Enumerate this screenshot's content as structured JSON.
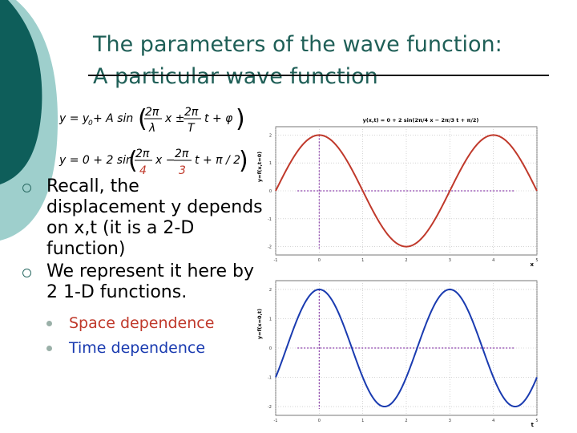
{
  "slide": {
    "title_line1": "The parameters of the wave function:",
    "title_line2": "A particular wave function",
    "colors": {
      "title": "#1f5f57",
      "deco_dark": "#0e5e5a",
      "deco_light": "#9ecfcc",
      "red": "#c0392b",
      "blue": "#1a3bb0"
    }
  },
  "equations": {
    "general": {
      "lhs": "y = y",
      "sub0": "0",
      "plus": " + A sin",
      "n1": "2π",
      "d1": "λ",
      "x": "x ±",
      "n2": "2π",
      "d2": "T",
      "t": "t + φ"
    },
    "particular": {
      "lhs": "y = 0 + 2 sin",
      "n1": "2π",
      "d1": "4",
      "x": "x −",
      "n2": "2π",
      "d2": "3",
      "t": "t + π / 2"
    }
  },
  "bullets": [
    {
      "text": "Recall, the displacement y depends on x,t (it is a 2-D function)"
    },
    {
      "text": "We represent it here by 2 1-D functions.",
      "sub": [
        {
          "text": "Space dependence"
        },
        {
          "text": "Time dependence"
        }
      ]
    }
  ],
  "chart_data": [
    {
      "type": "line",
      "title": "y(x,t) = 0 + 2 sin(2π/4 x − 2π/3 t + π/2)",
      "ylabel": "y=f(x,t=0)",
      "xlabel": "x",
      "xlim": [
        -1,
        5
      ],
      "ylim": [
        -2.3,
        2.3
      ],
      "xticks": [
        "-1",
        "0",
        "1",
        "2",
        "3",
        "4",
        "5"
      ],
      "yticks": [
        "-2",
        "-1",
        "0",
        "1",
        "2"
      ],
      "color": "#c0392b",
      "function": {
        "A": 2,
        "k": 1.5708,
        "phase": 1.5708
      }
    },
    {
      "type": "line",
      "ylabel": "y=f(x=0,t)",
      "xlabel": "t",
      "xlim": [
        -1,
        5
      ],
      "ylim": [
        -2.3,
        2.3
      ],
      "xticks": [
        "-1",
        "0",
        "1",
        "2",
        "3",
        "4",
        "5"
      ],
      "yticks": [
        "-2",
        "-1",
        "0",
        "1",
        "2"
      ],
      "color": "#1a3bb0",
      "function": {
        "A": 2,
        "k": -2.0944,
        "phase": 1.5708
      }
    }
  ]
}
